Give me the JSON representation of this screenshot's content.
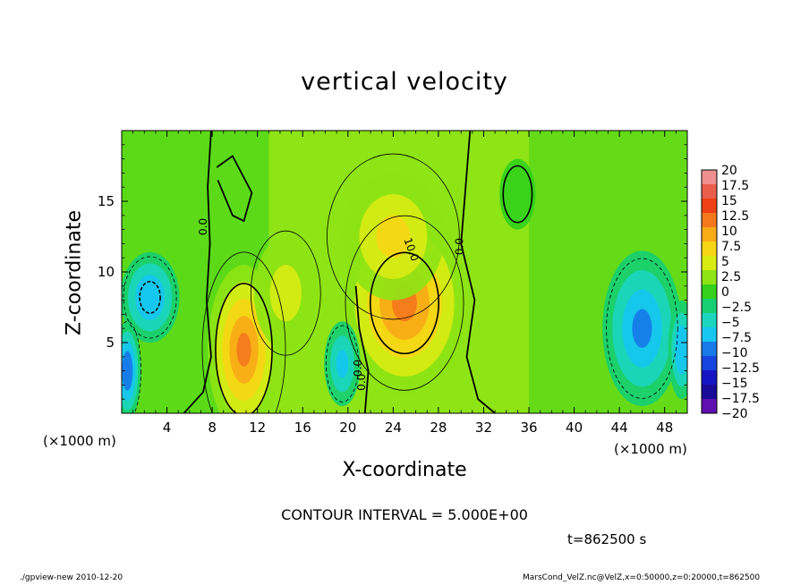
{
  "chart_data": {
    "type": "heatmap",
    "title": "vertical velocity",
    "xlabel": "X-coordinate",
    "ylabel": "Z-coordinate",
    "x_unit": "(×1000 m)",
    "xlim": [
      0,
      50
    ],
    "ylim": [
      0,
      20
    ],
    "x_ticks": [
      4,
      8,
      12,
      16,
      20,
      24,
      28,
      32,
      36,
      40,
      44,
      48
    ],
    "y_ticks": [
      5,
      10,
      15
    ],
    "colorbar": {
      "labels": [
        "20",
        "17.5",
        "15",
        "12.5",
        "10",
        "7.5",
        "5",
        "2.5",
        "0",
        "−2.5",
        "−5",
        "−7.5",
        "−10",
        "−12.5",
        "−15",
        "−17.5",
        "−20"
      ],
      "colors": [
        "#f08f8f",
        "#ec5e4c",
        "#ef3f14",
        "#f5781c",
        "#f7ab17",
        "#f6d615",
        "#d8ec12",
        "#8ee414",
        "#33d11b",
        "#16cf72",
        "#1bd5bf",
        "#16c6f0",
        "#177ae8",
        "#1845e0",
        "#1515c4",
        "#1a0a9a",
        "#6010b0"
      ]
    },
    "contour_labels": [
      "0.0",
      "0.0",
      "10.0",
      "0.0",
      "0.0"
    ],
    "features": [
      {
        "x": 10.8,
        "z": 4.5,
        "w": 12.5
      },
      {
        "x": 25.0,
        "z": 7.8,
        "w": 10.5
      },
      {
        "x": 24.0,
        "z": 12.5,
        "w": 6.0
      },
      {
        "x": 14.5,
        "z": 8.5,
        "w": 4.5
      },
      {
        "x": 19.5,
        "z": 3.5,
        "w": -7.5
      },
      {
        "x": 2.5,
        "z": 8.2,
        "w": -8.5
      },
      {
        "x": 0.5,
        "z": 3.0,
        "w": -11.0
      },
      {
        "x": 46.0,
        "z": 6.0,
        "w": -10.0
      },
      {
        "x": 49.5,
        "z": 4.5,
        "w": -9.0
      },
      {
        "x": 35.0,
        "z": 15.5,
        "w": -2.0
      }
    ]
  },
  "contour_interval_text": "CONTOUR INTERVAL = 5.000E+00",
  "time_text": "t=862500 s",
  "footer_left": "./gpview-new  2010-12-20",
  "footer_right": "MarsCond_VelZ.nc@VelZ,x=0:50000,z=0:20000,t=862500"
}
